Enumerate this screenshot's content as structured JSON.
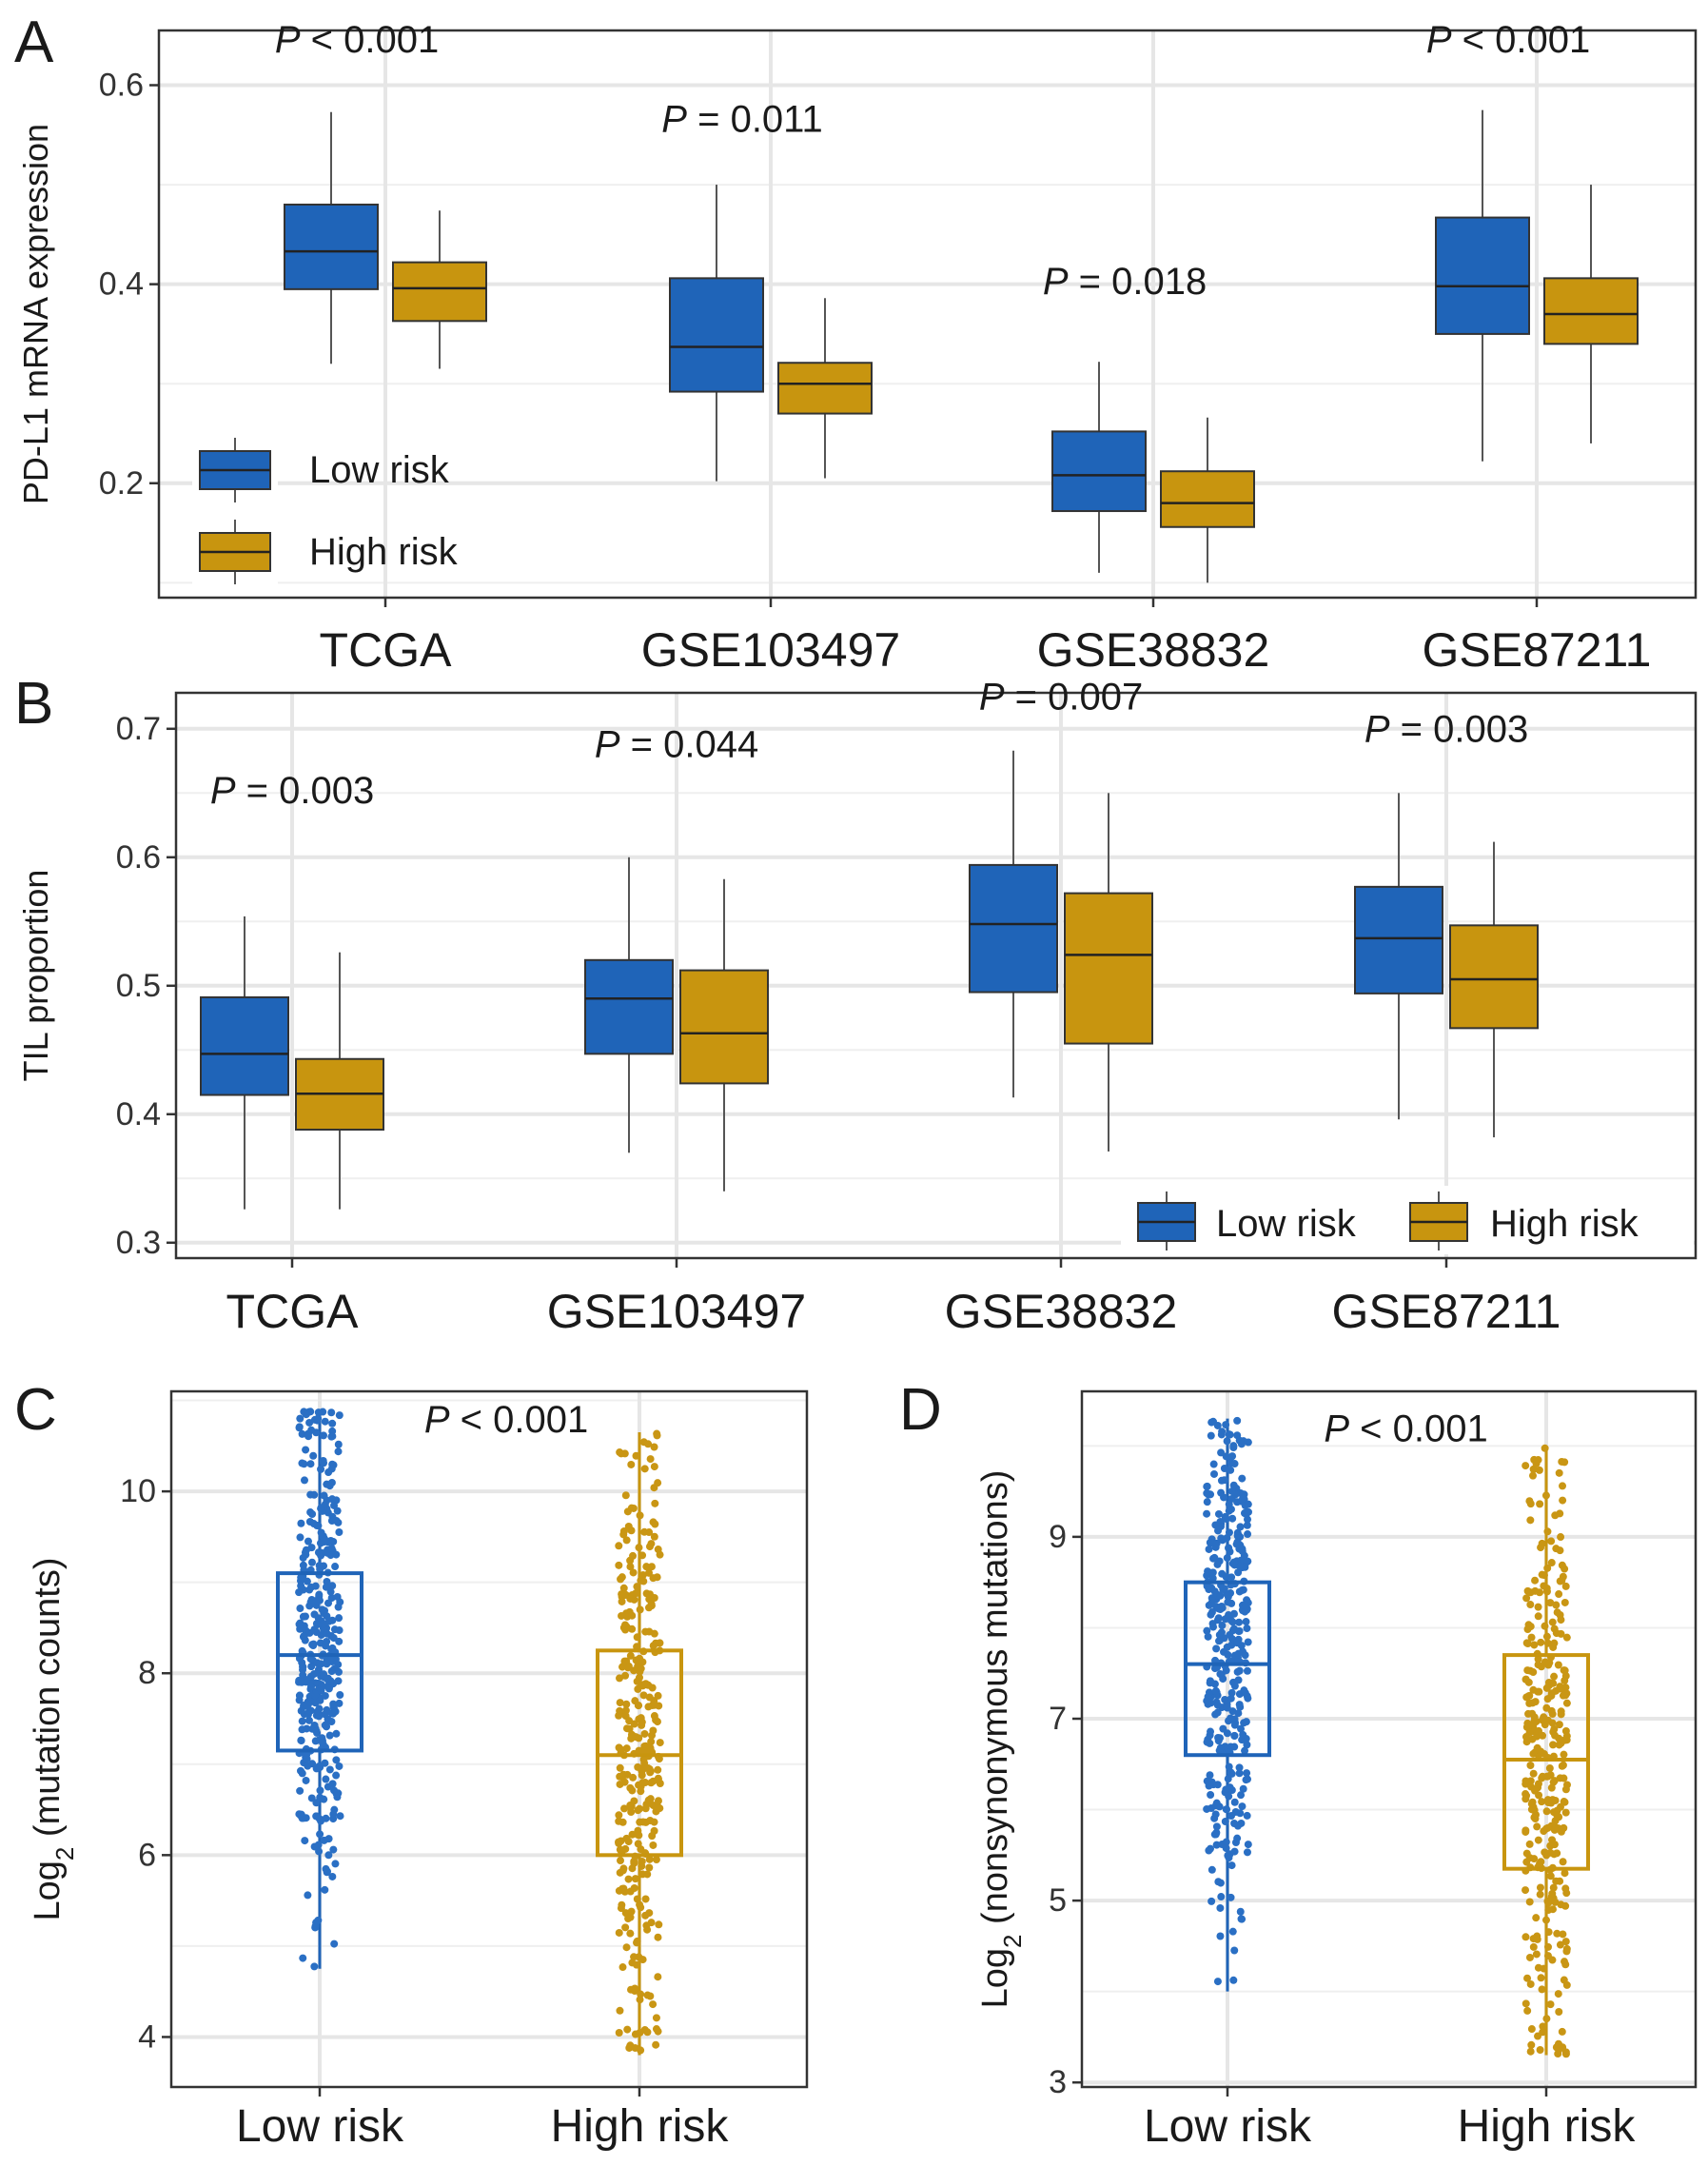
{
  "colors": {
    "low": "#1f64b8",
    "high": "#c8950f",
    "grid": "#e6e6e6",
    "frame": "#333333",
    "jitter_low": "#2a6fc4",
    "jitter_high": "#c99614"
  },
  "chart_data": [
    {
      "id": "A",
      "panel_label": "A",
      "type": "boxplot",
      "ylabel": "PD-L1 mRNA expression",
      "ylim": [
        0.085,
        0.655
      ],
      "yticks": [
        0.2,
        0.4,
        0.6
      ],
      "ytick_labels": [
        "0.2",
        "0.4",
        "0.6"
      ],
      "categories": [
        "TCGA",
        "GSE103497",
        "GSE38832",
        "GSE87211"
      ],
      "legend_position": "bottom-left",
      "legend": [
        "Low risk",
        "High risk"
      ],
      "series": [
        {
          "name": "Low risk",
          "boxes": [
            {
              "min": 0.32,
              "q1": 0.395,
              "median": 0.433,
              "q3": 0.48,
              "max": 0.573
            },
            {
              "min": 0.202,
              "q1": 0.292,
              "median": 0.337,
              "q3": 0.406,
              "max": 0.5
            },
            {
              "min": 0.11,
              "q1": 0.172,
              "median": 0.208,
              "q3": 0.252,
              "max": 0.322
            },
            {
              "min": 0.222,
              "q1": 0.35,
              "median": 0.398,
              "q3": 0.467,
              "max": 0.575
            }
          ]
        },
        {
          "name": "High risk",
          "boxes": [
            {
              "min": 0.315,
              "q1": 0.363,
              "median": 0.396,
              "q3": 0.422,
              "max": 0.474
            },
            {
              "min": 0.205,
              "q1": 0.27,
              "median": 0.3,
              "q3": 0.321,
              "max": 0.386
            },
            {
              "min": 0.1,
              "q1": 0.156,
              "median": 0.18,
              "q3": 0.212,
              "max": 0.266
            },
            {
              "min": 0.24,
              "q1": 0.34,
              "median": 0.37,
              "q3": 0.406,
              "max": 0.5
            }
          ]
        }
      ],
      "pvalues": [
        {
          "label": "P",
          "text": " < 0.001",
          "cat": 0,
          "y": 0.633
        },
        {
          "label": "P",
          "text": " = 0.011",
          "cat": 1,
          "y": 0.553
        },
        {
          "label": "P",
          "text": " = 0.018",
          "cat": 2,
          "y": 0.39
        },
        {
          "label": "P",
          "text": " < 0.001",
          "cat": 3,
          "y": 0.633
        }
      ]
    },
    {
      "id": "B",
      "panel_label": "B",
      "type": "boxplot",
      "ylabel": "TIL proportion",
      "ylim": [
        0.288,
        0.728
      ],
      "yticks": [
        0.3,
        0.4,
        0.5,
        0.6,
        0.7
      ],
      "ytick_labels": [
        "0.3",
        "0.4",
        "0.5",
        "0.6",
        "0.7"
      ],
      "categories": [
        "TCGA",
        "GSE103497",
        "GSE38832",
        "GSE87211"
      ],
      "legend_position": "bottom-right",
      "legend": [
        "Low risk",
        "High risk"
      ],
      "series": [
        {
          "name": "Low risk",
          "boxes": [
            {
              "min": 0.326,
              "q1": 0.415,
              "median": 0.447,
              "q3": 0.491,
              "max": 0.554
            },
            {
              "min": 0.37,
              "q1": 0.447,
              "median": 0.49,
              "q3": 0.52,
              "max": 0.6
            },
            {
              "min": 0.413,
              "q1": 0.495,
              "median": 0.548,
              "q3": 0.594,
              "max": 0.683
            },
            {
              "min": 0.396,
              "q1": 0.494,
              "median": 0.537,
              "q3": 0.577,
              "max": 0.65
            }
          ]
        },
        {
          "name": "High risk",
          "boxes": [
            {
              "min": 0.326,
              "q1": 0.388,
              "median": 0.416,
              "q3": 0.443,
              "max": 0.526
            },
            {
              "min": 0.34,
              "q1": 0.424,
              "median": 0.463,
              "q3": 0.512,
              "max": 0.583
            },
            {
              "min": 0.371,
              "q1": 0.455,
              "median": 0.524,
              "q3": 0.572,
              "max": 0.65
            },
            {
              "min": 0.382,
              "q1": 0.467,
              "median": 0.505,
              "q3": 0.547,
              "max": 0.612
            }
          ]
        }
      ],
      "pvalues": [
        {
          "label": "P",
          "text": " = 0.003",
          "cat": 0,
          "y": 0.642
        },
        {
          "label": "P",
          "text": " = 0.044",
          "cat": 1,
          "y": 0.678
        },
        {
          "label": "P",
          "text": " = 0.007",
          "cat": 2,
          "y": 0.715
        },
        {
          "label": "P",
          "text": " = 0.003",
          "cat": 3,
          "y": 0.69
        }
      ]
    },
    {
      "id": "C",
      "panel_label": "C",
      "type": "boxplot-jitter",
      "ylabel_main": "Log",
      "ylabel_sub": "2",
      "ylabel_rest": " (mutation counts)",
      "ylim": [
        3.45,
        11.1
      ],
      "yticks": [
        4,
        6,
        8,
        10
      ],
      "ytick_labels": [
        "4",
        "6",
        "8",
        "10"
      ],
      "categories": [
        "Low risk",
        "High risk"
      ],
      "boxes": [
        {
          "name": "Low risk",
          "min": 4.75,
          "q1": 7.15,
          "median": 8.2,
          "q3": 9.1,
          "max": 10.9,
          "n": 380
        },
        {
          "name": "High risk",
          "min": 3.8,
          "q1": 6.0,
          "median": 7.1,
          "q3": 8.25,
          "max": 10.65,
          "n": 330
        }
      ],
      "pvalue": {
        "label": "P",
        "text": " < 0.001",
        "y": 10.65
      }
    },
    {
      "id": "D",
      "panel_label": "D",
      "type": "boxplot-jitter",
      "ylabel_main": "Log",
      "ylabel_sub": "2",
      "ylabel_rest": " (nonsynonymous mutations)",
      "ylim": [
        2.95,
        10.6
      ],
      "yticks": [
        3,
        5,
        7,
        9
      ],
      "ytick_labels": [
        "3",
        "5",
        "7",
        "9"
      ],
      "categories": [
        "Low risk",
        "High risk"
      ],
      "boxes": [
        {
          "name": "Low risk",
          "min": 4.0,
          "q1": 6.6,
          "median": 7.6,
          "q3": 8.5,
          "max": 10.3,
          "n": 380
        },
        {
          "name": "High risk",
          "min": 3.3,
          "q1": 5.35,
          "median": 6.55,
          "q3": 7.7,
          "max": 10.0,
          "n": 330
        }
      ],
      "pvalue": {
        "label": "P",
        "text": " < 0.001",
        "y": 10.05
      }
    }
  ]
}
